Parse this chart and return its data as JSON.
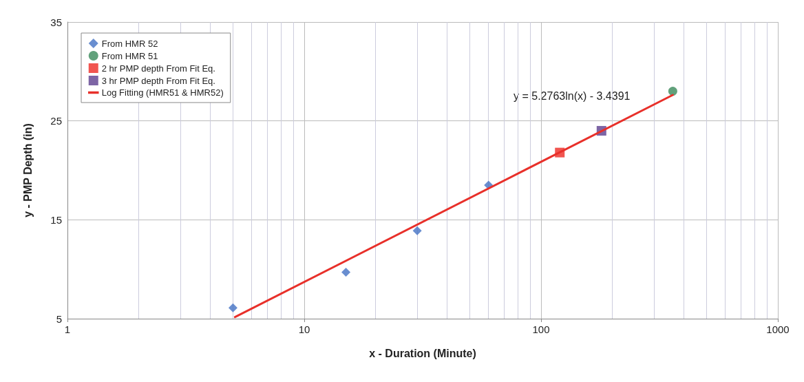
{
  "chart_data": {
    "type": "scatter",
    "xlabel": "x - Duration (Minute)",
    "ylabel": "y - PMP Depth (in)",
    "log": "x",
    "xlim": [
      1,
      1000
    ],
    "xticks": [
      1,
      10,
      100,
      1000
    ],
    "ylim": [
      5,
      35
    ],
    "yticks": [
      5,
      15,
      25,
      35
    ],
    "grid": true,
    "legend": "top left",
    "annotations": [
      "y = 5.2763ln(x) - 3.4391"
    ],
    "series": [
      {
        "name": "From HMR 52",
        "marker": "diamond",
        "color": "#4472c4",
        "x": [
          5,
          15,
          30,
          60
        ],
        "values": [
          6.1,
          9.7,
          13.9,
          18.5
        ]
      },
      {
        "name": "From HMR 51",
        "marker": "circle",
        "color": "#3a8a5a",
        "x": [
          360
        ],
        "values": [
          28
        ]
      },
      {
        "name": "2 hr PMP depth From Fit Eq.",
        "marker": "square",
        "color": "#ee2a24",
        "x": [
          120
        ],
        "values": [
          21.8
        ]
      },
      {
        "name": "3 hr PMP depth From Fit Eq.",
        "marker": "square",
        "color": "#5d3f8f",
        "x": [
          180
        ],
        "values": [
          24
        ]
      },
      {
        "name": "Log Fitting (HMR51 & HMR52)",
        "type": "line",
        "marker": "none",
        "line_style": "solid",
        "color": "#e8302a",
        "x": [
          5.1,
          360
        ],
        "values": [
          5.16,
          27.62
        ]
      }
    ]
  }
}
